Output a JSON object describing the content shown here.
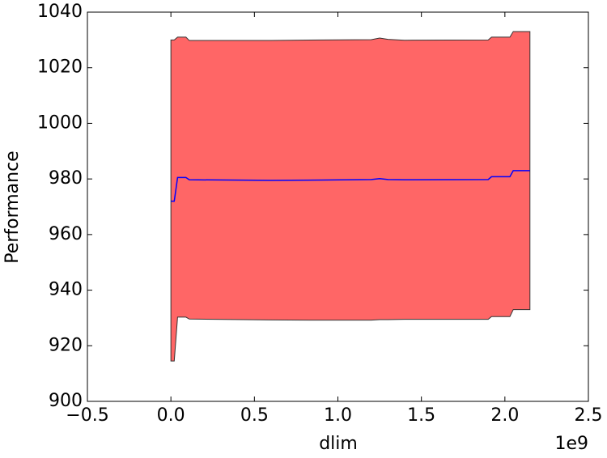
{
  "chart_data": {
    "type": "band-line",
    "x_label": "dlim",
    "y_label": "Performance",
    "x_offset_label": "1e9",
    "x": [
      0,
      0.02,
      0.04,
      0.09,
      0.11,
      0.6,
      0.9,
      1.2,
      1.25,
      1.3,
      1.4,
      1.9,
      1.92,
      2.03,
      2.05,
      2.15
    ],
    "line": {
      "color": "#0000ff",
      "values": [
        972,
        972,
        980.5,
        980.5,
        979.7,
        979.5,
        979.6,
        979.8,
        980.1,
        979.8,
        979.7,
        979.8,
        980.8,
        980.8,
        983,
        983
      ]
    },
    "band": {
      "color": "#ff6666",
      "edge_color": "#333333",
      "upper": [
        1030,
        1030,
        1031,
        1031,
        1029.8,
        1029.8,
        1030,
        1030.1,
        1030.7,
        1030.2,
        1029.9,
        1030,
        1031,
        1031,
        1033,
        1033
      ],
      "lower": [
        914.5,
        914.5,
        930.3,
        930.3,
        929.6,
        929.3,
        929.2,
        929.2,
        929.4,
        929.4,
        929.5,
        929.5,
        930.5,
        930.5,
        933,
        933
      ]
    },
    "xlim": [
      -0.5,
      2.5
    ],
    "xticks": [
      {
        "value": -0.5,
        "label": "−0.5"
      },
      {
        "value": 0,
        "label": "0.0"
      },
      0.5,
      {
        "value": 1,
        "label": "1.0"
      },
      1.5,
      {
        "value": 2,
        "label": "2.0"
      },
      2.5
    ],
    "ylim": [
      900,
      1040
    ],
    "yticks": [
      900,
      920,
      940,
      960,
      980,
      1000,
      1020,
      1040
    ]
  }
}
